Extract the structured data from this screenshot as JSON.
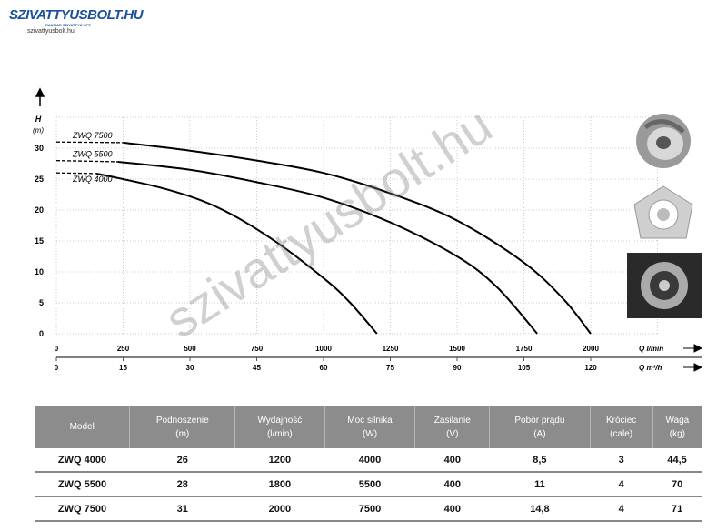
{
  "header": {
    "logo_text": "SZIVATTYUSBOLT.HU",
    "logo_subtext": "RAUMAR SZIVATTYÚ KFT.",
    "site": "szivattyusbolt.hu"
  },
  "watermark": "szivattyusbolt.hu",
  "chart_data": {
    "type": "line",
    "ylabel": "H",
    "yunit": "(m)",
    "xlabel": "Q l/min",
    "x2label": "Q m³/h",
    "xlim": [
      0,
      2000
    ],
    "ylim": [
      0,
      30
    ],
    "xticks": [
      0,
      250,
      500,
      750,
      1000,
      1250,
      1500,
      1750,
      2000
    ],
    "x2ticks": [
      0,
      15,
      30,
      45,
      60,
      75,
      90,
      105,
      120
    ],
    "yticks": [
      0,
      5,
      10,
      15,
      20,
      25,
      30
    ],
    "grid": true,
    "series": [
      {
        "name": "ZWQ 7500",
        "shutoff": 31,
        "dashed_to": 250,
        "points": [
          [
            250,
            30.9
          ],
          [
            500,
            29.6
          ],
          [
            750,
            28
          ],
          [
            1000,
            26
          ],
          [
            1250,
            22.7
          ],
          [
            1500,
            18.3
          ],
          [
            1750,
            11.5
          ],
          [
            1900,
            5.5
          ],
          [
            2000,
            0
          ]
        ]
      },
      {
        "name": "ZWQ 5500",
        "shutoff": 28,
        "dashed_to": 230,
        "points": [
          [
            230,
            27.8
          ],
          [
            500,
            26.5
          ],
          [
            750,
            24.5
          ],
          [
            1000,
            22
          ],
          [
            1250,
            18
          ],
          [
            1500,
            12.5
          ],
          [
            1650,
            7.5
          ],
          [
            1800,
            0
          ]
        ]
      },
      {
        "name": "ZWQ 4000",
        "shutoff": 26,
        "dashed_to": 150,
        "points": [
          [
            150,
            25.9
          ],
          [
            400,
            23.5
          ],
          [
            600,
            20.5
          ],
          [
            800,
            15.5
          ],
          [
            1000,
            9
          ],
          [
            1100,
            5
          ],
          [
            1200,
            0
          ]
        ]
      }
    ]
  },
  "table": {
    "headers": [
      [
        "Model",
        ""
      ],
      [
        "Podnoszenie",
        "(m)"
      ],
      [
        "Wydajność",
        "(l/min)"
      ],
      [
        "Moc silnika",
        "(W)"
      ],
      [
        "Zasilanie",
        "(V)"
      ],
      [
        "Pobór prądu",
        "(A)"
      ],
      [
        "Króciec",
        "(cale)"
      ],
      [
        "Waga",
        "(kg)"
      ]
    ],
    "rows": [
      [
        "ZWQ 4000",
        "26",
        "1200",
        "4000",
        "400",
        "8,5",
        "3",
        "44,5"
      ],
      [
        "ZWQ 5500",
        "28",
        "1800",
        "5500",
        "400",
        "11",
        "4",
        "70"
      ],
      [
        "ZWQ 7500",
        "31",
        "2000",
        "7500",
        "400",
        "14,8",
        "4",
        "71"
      ]
    ]
  }
}
